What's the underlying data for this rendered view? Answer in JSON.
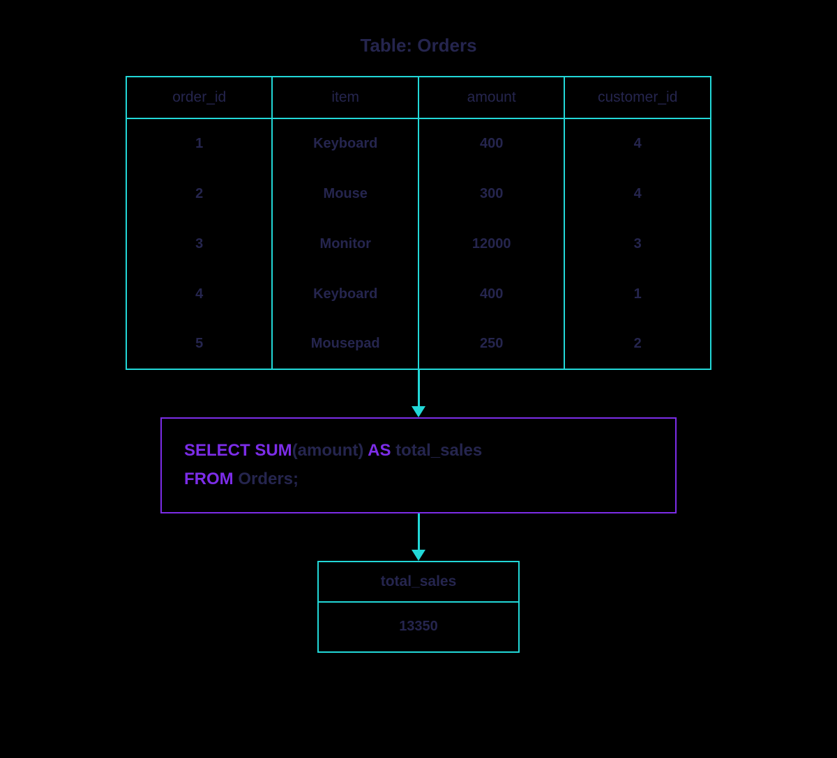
{
  "title": "Table: Orders",
  "orders_table": {
    "type": "table",
    "columns": [
      "order_id",
      "item",
      "amount",
      "customer_id"
    ],
    "rows": [
      [
        "1",
        "Keyboard",
        "400",
        "4"
      ],
      [
        "2",
        "Mouse",
        "300",
        "4"
      ],
      [
        "3",
        "Monitor",
        "12000",
        "3"
      ],
      [
        "4",
        "Keyboard",
        "400",
        "1"
      ],
      [
        "5",
        "Mousepad",
        "250",
        "2"
      ]
    ],
    "border_color": "#22d8d8",
    "text_color": "#25254e",
    "header_fontsize": 21,
    "cell_fontsize": 20
  },
  "sql_query": {
    "tokens": [
      {
        "text": "SELECT SUM",
        "type": "kw"
      },
      {
        "text": "(amount) ",
        "type": "ident"
      },
      {
        "text": "AS",
        "type": "kw"
      },
      {
        "text": " total_sales",
        "type": "ident"
      },
      {
        "text": "\n",
        "type": "br"
      },
      {
        "text": "FROM",
        "type": "kw"
      },
      {
        "text": " Orders;",
        "type": "ident"
      }
    ],
    "border_color": "#7c2de8",
    "keyword_color": "#7c2de8",
    "identifier_color": "#25254e",
    "fontsize": 24
  },
  "result_table": {
    "type": "table",
    "columns": [
      "total_sales"
    ],
    "rows": [
      [
        "13350"
      ]
    ],
    "border_color": "#22d8d8",
    "text_color": "#25254e"
  },
  "arrow_color": "#22d8d8",
  "background_color": "#000000"
}
